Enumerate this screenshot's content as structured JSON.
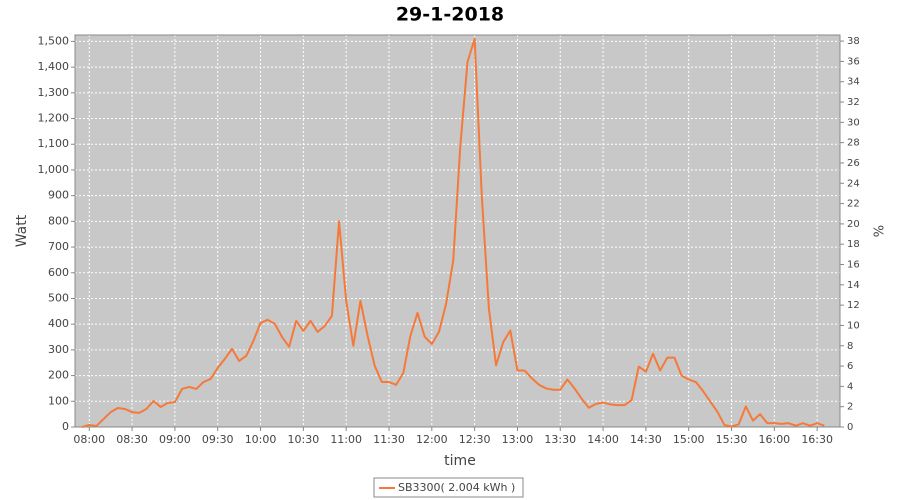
{
  "chart_data": {
    "type": "line",
    "title": "29-1-2018",
    "x_label": "time",
    "y_label": "Watt",
    "y2_label": "%",
    "x": [
      "07:55",
      "08:00",
      "08:05",
      "08:10",
      "08:15",
      "08:20",
      "08:25",
      "08:30",
      "08:35",
      "08:40",
      "08:45",
      "08:50",
      "08:55",
      "09:00",
      "09:05",
      "09:10",
      "09:15",
      "09:20",
      "09:25",
      "09:30",
      "09:35",
      "09:40",
      "09:45",
      "09:50",
      "09:55",
      "10:00",
      "10:05",
      "10:10",
      "10:15",
      "10:20",
      "10:25",
      "10:30",
      "10:35",
      "10:40",
      "10:45",
      "10:50",
      "10:55",
      "11:00",
      "11:05",
      "11:10",
      "11:15",
      "11:20",
      "11:25",
      "11:30",
      "11:35",
      "11:40",
      "11:45",
      "11:50",
      "11:55",
      "12:00",
      "12:05",
      "12:10",
      "12:15",
      "12:20",
      "12:25",
      "12:30",
      "12:35",
      "12:40",
      "12:45",
      "12:50",
      "12:55",
      "13:00",
      "13:05",
      "13:10",
      "13:15",
      "13:20",
      "13:25",
      "13:30",
      "13:35",
      "13:40",
      "13:45",
      "13:50",
      "13:55",
      "14:00",
      "14:05",
      "14:10",
      "14:15",
      "14:20",
      "14:25",
      "14:30",
      "14:35",
      "14:40",
      "14:45",
      "14:50",
      "14:55",
      "15:00",
      "15:05",
      "15:10",
      "15:15",
      "15:20",
      "15:25",
      "15:30",
      "15:35",
      "15:40",
      "15:45",
      "15:50",
      "15:55",
      "16:00",
      "16:05",
      "16:10",
      "16:15",
      "16:20",
      "16:25",
      "16:30",
      "16:35"
    ],
    "series": [
      {
        "name": "SB3300( 2.004 kWh )",
        "color": "#f57a3a",
        "values": [
          0,
          8,
          4,
          31,
          58,
          74,
          70,
          58,
          55,
          70,
          101,
          78,
          94,
          97,
          148,
          156,
          148,
          175,
          187,
          230,
          265,
          304,
          257,
          277,
          335,
          405,
          417,
          401,
          351,
          312,
          413,
          374,
          413,
          370,
          393,
          432,
          800,
          491,
          316,
          491,
          355,
          238,
          175,
          175,
          164,
          210,
          355,
          444,
          351,
          323,
          370,
          479,
          647,
          1095,
          1420,
          1510,
          900,
          460,
          240,
          330,
          375,
          220,
          220,
          190,
          165,
          150,
          145,
          145,
          185,
          150,
          110,
          75,
          90,
          95,
          88,
          85,
          85,
          105,
          235,
          215,
          285,
          220,
          270,
          270,
          200,
          185,
          175,
          140,
          100,
          60,
          8,
          2,
          10,
          80,
          25,
          50,
          15,
          15,
          12,
          15,
          5,
          15,
          5,
          15,
          5
        ]
      }
    ],
    "xlim": [
      "07:50",
      "16:46"
    ],
    "xticks": [
      "08:00",
      "08:30",
      "09:00",
      "09:30",
      "10:00",
      "10:30",
      "11:00",
      "11:30",
      "12:00",
      "12:30",
      "13:00",
      "13:30",
      "14:00",
      "14:30",
      "15:00",
      "15:30",
      "16:00",
      "16:30"
    ],
    "ylim": [
      0,
      1525
    ],
    "yticks": [
      0,
      100,
      200,
      300,
      400,
      500,
      600,
      700,
      800,
      900,
      {
        "value": 1000,
        "label": "1,000"
      },
      {
        "value": 1100,
        "label": "1,100"
      },
      {
        "value": 1200,
        "label": "1,200"
      },
      {
        "value": 1300,
        "label": "1,300"
      },
      {
        "value": 1400,
        "label": "1,400"
      },
      {
        "value": 1500,
        "label": "1,500"
      }
    ],
    "y2lim": [
      0,
      38.6
    ],
    "y2ticks": [
      0,
      2,
      4,
      6,
      8,
      10,
      12,
      14,
      16,
      18,
      20,
      22,
      24,
      26,
      28,
      30,
      32,
      34,
      36,
      38
    ],
    "grid": true
  }
}
